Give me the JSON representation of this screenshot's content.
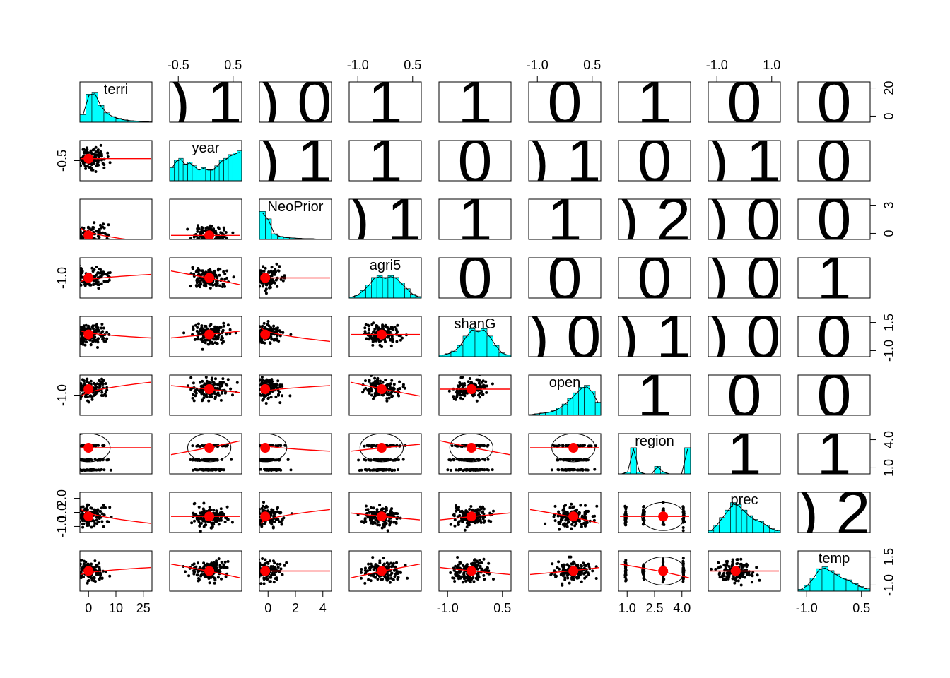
{
  "chart_data": {
    "type": "scatter",
    "kind": "pairs-panels matrix (histograms on diagonal, scatter with loess fit and correlation ellipse below, correlation coefficients above)",
    "variables": [
      "terri",
      "year",
      "NeoPrior",
      "agri5",
      "shanG",
      "open",
      "region",
      "prec",
      "temp"
    ],
    "histogram_color": "#00FFFF",
    "fit_color": "#FF0000",
    "point_color": "#000000",
    "axis_ticks": {
      "top": [
        {
          "col": 1,
          "labels": [
            "-0.5",
            "0.5"
          ]
        },
        {
          "col": 3,
          "labels": [
            "-1.0",
            "0.5"
          ]
        },
        {
          "col": 5,
          "labels": [
            "-1.0",
            "0.5"
          ]
        },
        {
          "col": 7,
          "labels": [
            "-1.0",
            "1.0"
          ]
        }
      ],
      "bottom": [
        {
          "col": 0,
          "labels": [
            "0",
            "10",
            "25"
          ]
        },
        {
          "col": 2,
          "labels": [
            "0",
            "2",
            "4"
          ]
        },
        {
          "col": 4,
          "labels": [
            "-1.0",
            "0.5"
          ]
        },
        {
          "col": 6,
          "labels": [
            "1.0",
            "2.5",
            "4.0"
          ]
        },
        {
          "col": 8,
          "labels": [
            "-1.0",
            "0.5"
          ]
        }
      ],
      "left": [
        {
          "row": 1,
          "labels": [
            "-0.5"
          ]
        },
        {
          "row": 3,
          "labels": [
            "-1.0"
          ]
        },
        {
          "row": 5,
          "labels": [
            "-1.0"
          ]
        },
        {
          "row": 7,
          "labels": [
            "2.0",
            "1.0",
            "-1.0"
          ]
        }
      ],
      "right": [
        {
          "row": 0,
          "labels": [
            "20",
            "0"
          ]
        },
        {
          "row": 2,
          "labels": [
            "3",
            "0"
          ]
        },
        {
          "row": 4,
          "labels": [
            "1.5",
            "-1.0"
          ]
        },
        {
          "row": 6,
          "labels": [
            "4.0",
            "1.0"
          ]
        },
        {
          "row": 8,
          "labels": [
            "1.5",
            "-1.0"
          ]
        }
      ]
    },
    "correlation_text": [
      {
        "row": 0,
        "col": 1,
        "text": ") 1"
      },
      {
        "row": 0,
        "col": 2,
        "text": ") 0"
      },
      {
        "row": 0,
        "col": 3,
        "text": "1"
      },
      {
        "row": 0,
        "col": 4,
        "text": "1"
      },
      {
        "row": 0,
        "col": 5,
        "text": "0"
      },
      {
        "row": 0,
        "col": 6,
        "text": "1"
      },
      {
        "row": 0,
        "col": 7,
        "text": "0"
      },
      {
        "row": 0,
        "col": 8,
        "text": "0"
      },
      {
        "row": 1,
        "col": 2,
        "text": ") 1"
      },
      {
        "row": 1,
        "col": 3,
        "text": "1"
      },
      {
        "row": 1,
        "col": 4,
        "text": "0"
      },
      {
        "row": 1,
        "col": 5,
        "text": ") 1"
      },
      {
        "row": 1,
        "col": 6,
        "text": "0"
      },
      {
        "row": 1,
        "col": 7,
        "text": ") 1"
      },
      {
        "row": 1,
        "col": 8,
        "text": "0"
      },
      {
        "row": 2,
        "col": 3,
        "text": ") 1"
      },
      {
        "row": 2,
        "col": 4,
        "text": "1"
      },
      {
        "row": 2,
        "col": 5,
        "text": "1"
      },
      {
        "row": 2,
        "col": 6,
        "text": ") 2"
      },
      {
        "row": 2,
        "col": 7,
        "text": ") 0"
      },
      {
        "row": 2,
        "col": 8,
        "text": "0"
      },
      {
        "row": 3,
        "col": 4,
        "text": "0"
      },
      {
        "row": 3,
        "col": 5,
        "text": "0"
      },
      {
        "row": 3,
        "col": 6,
        "text": "0"
      },
      {
        "row": 3,
        "col": 7,
        "text": ") 0"
      },
      {
        "row": 3,
        "col": 8,
        "text": "1"
      },
      {
        "row": 4,
        "col": 5,
        "text": ") 0"
      },
      {
        "row": 4,
        "col": 6,
        "text": ") 1"
      },
      {
        "row": 4,
        "col": 7,
        "text": ") 0"
      },
      {
        "row": 4,
        "col": 8,
        "text": "0"
      },
      {
        "row": 5,
        "col": 6,
        "text": "1"
      },
      {
        "row": 5,
        "col": 7,
        "text": "0"
      },
      {
        "row": 5,
        "col": 8,
        "text": "0"
      },
      {
        "row": 6,
        "col": 7,
        "text": "1"
      },
      {
        "row": 6,
        "col": 8,
        "text": "1"
      },
      {
        "row": 7,
        "col": 8,
        "text": ") 2"
      }
    ]
  }
}
